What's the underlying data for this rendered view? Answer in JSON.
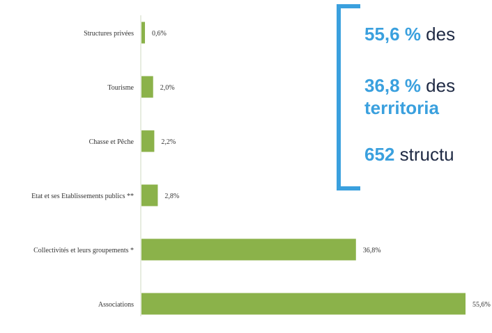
{
  "chart_data": {
    "type": "bar",
    "orientation": "horizontal",
    "categories": [
      "Structures privées",
      "Tourisme",
      "Chasse et Pêche",
      "Etat et ses Etablissements publics **",
      "Collectivités et leurs groupements *",
      "Associations"
    ],
    "values": [
      0.6,
      2.0,
      2.2,
      2.8,
      36.8,
      55.6
    ],
    "value_labels": [
      "0,6%",
      "2,0%",
      "2,2%",
      "2,8%",
      "36,8%",
      "55,6%"
    ],
    "bar_color": "#8bb24a",
    "xlim": [
      0,
      55.6
    ],
    "grid": false
  },
  "callout": {
    "accent_color": "#3aa0de",
    "line1": {
      "number": "55,6 %",
      "text": " des"
    },
    "line2": {
      "number": "36,8 %",
      "text": " des"
    },
    "line3": {
      "text": "territoria"
    },
    "line4": {
      "number": "652",
      "text": " structu"
    }
  }
}
